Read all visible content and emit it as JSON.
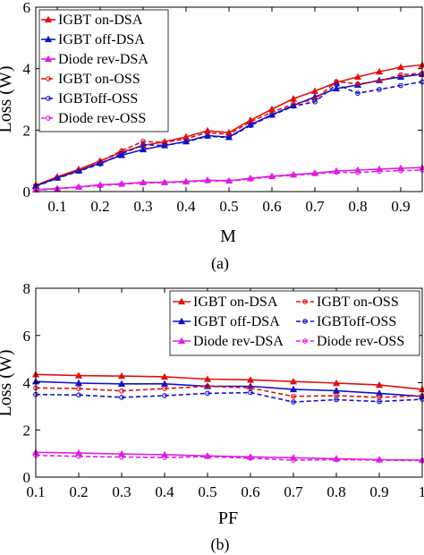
{
  "colors": {
    "IGBT on-DSA": "#e01010",
    "IGBT off-DSA": "#1212c8",
    "Diode rev-DSA": "#e01ee0",
    "IGBT on-OSS": "#e01010",
    "IGBToff-OSS": "#1212c8",
    "Diode rev-OSS": "#e01ee0"
  },
  "chart_data": [
    {
      "type": "line",
      "caption": "(a)",
      "xlabel": "M",
      "ylabel": "Loss (W)",
      "xlim": [
        0.05,
        0.95
      ],
      "ylim": [
        0,
        6
      ],
      "xticks": [
        "0.1",
        "0.2",
        "0.3",
        "0.4",
        "0.5",
        "0.6",
        "0.7",
        "0.8",
        "0.9"
      ],
      "yticks": [
        "0",
        "2",
        "4",
        "6"
      ],
      "grid": false,
      "legend_position": "top-left",
      "series": [
        {
          "name": "IGBT on-DSA",
          "style": "solid",
          "marker": "triangle",
          "x": [
            0.05,
            0.1,
            0.15,
            0.2,
            0.25,
            0.3,
            0.35,
            0.4,
            0.45,
            0.5,
            0.55,
            0.6,
            0.65,
            0.7,
            0.75,
            0.8,
            0.85,
            0.9,
            0.95
          ],
          "y": [
            0.2,
            0.48,
            0.72,
            1.0,
            1.28,
            1.5,
            1.62,
            1.78,
            1.98,
            1.92,
            2.32,
            2.68,
            3.02,
            3.27,
            3.55,
            3.73,
            3.9,
            4.05,
            4.12
          ]
        },
        {
          "name": "IGBT off-DSA",
          "style": "solid",
          "marker": "triangle",
          "x": [
            0.05,
            0.1,
            0.15,
            0.2,
            0.25,
            0.3,
            0.35,
            0.4,
            0.45,
            0.5,
            0.55,
            0.6,
            0.65,
            0.7,
            0.75,
            0.8,
            0.85,
            0.9,
            0.95
          ],
          "y": [
            0.18,
            0.45,
            0.68,
            0.93,
            1.18,
            1.37,
            1.5,
            1.63,
            1.82,
            1.77,
            2.18,
            2.5,
            2.8,
            3.08,
            3.35,
            3.47,
            3.62,
            3.73,
            3.82
          ]
        },
        {
          "name": "Diode rev-DSA",
          "style": "solid",
          "marker": "triangle",
          "x": [
            0.05,
            0.1,
            0.15,
            0.2,
            0.25,
            0.3,
            0.35,
            0.4,
            0.45,
            0.5,
            0.55,
            0.6,
            0.65,
            0.7,
            0.75,
            0.8,
            0.85,
            0.9,
            0.95
          ],
          "y": [
            0.06,
            0.1,
            0.15,
            0.22,
            0.25,
            0.3,
            0.3,
            0.33,
            0.37,
            0.35,
            0.43,
            0.5,
            0.55,
            0.6,
            0.67,
            0.7,
            0.73,
            0.76,
            0.78
          ]
        },
        {
          "name": "IGBT on-OSS",
          "style": "dashed",
          "marker": "circle",
          "x": [
            0.05,
            0.1,
            0.15,
            0.2,
            0.25,
            0.3,
            0.35,
            0.4,
            0.45,
            0.5,
            0.55,
            0.6,
            0.65,
            0.7,
            0.75,
            0.8,
            0.85,
            0.9,
            0.95
          ],
          "y": [
            0.2,
            0.46,
            0.7,
            0.98,
            1.33,
            1.63,
            1.6,
            1.72,
            1.92,
            1.86,
            2.27,
            2.58,
            2.85,
            3.0,
            3.58,
            3.5,
            3.6,
            3.8,
            3.85
          ]
        },
        {
          "name": "IGBToff-OSS",
          "style": "dashed",
          "marker": "circle",
          "x": [
            0.05,
            0.1,
            0.15,
            0.2,
            0.25,
            0.3,
            0.35,
            0.4,
            0.45,
            0.5,
            0.55,
            0.6,
            0.65,
            0.7,
            0.75,
            0.8,
            0.85,
            0.9,
            0.95
          ],
          "y": [
            0.17,
            0.43,
            0.66,
            0.9,
            1.23,
            1.52,
            1.5,
            1.62,
            1.8,
            1.76,
            2.15,
            2.48,
            2.78,
            2.92,
            3.48,
            3.2,
            3.32,
            3.45,
            3.57
          ]
        },
        {
          "name": "Diode rev-OSS",
          "style": "dashed",
          "marker": "circle",
          "x": [
            0.05,
            0.1,
            0.15,
            0.2,
            0.25,
            0.3,
            0.35,
            0.4,
            0.45,
            0.5,
            0.55,
            0.6,
            0.65,
            0.7,
            0.75,
            0.8,
            0.85,
            0.9,
            0.95
          ],
          "y": [
            0.05,
            0.09,
            0.14,
            0.2,
            0.24,
            0.28,
            0.29,
            0.31,
            0.35,
            0.34,
            0.41,
            0.48,
            0.53,
            0.58,
            0.63,
            0.62,
            0.66,
            0.68,
            0.7
          ]
        }
      ]
    },
    {
      "type": "line",
      "caption": "(b)",
      "xlabel": "PF",
      "ylabel": "Loss (W)",
      "xlim": [
        0.1,
        1.0
      ],
      "ylim": [
        0,
        8
      ],
      "xticks": [
        "0.1",
        "0.2",
        "0.3",
        "0.4",
        "0.5",
        "0.6",
        "0.7",
        "0.8",
        "0.9",
        "1"
      ],
      "yticks": [
        "0",
        "2",
        "4",
        "6",
        "8"
      ],
      "grid": false,
      "legend_position": "top-right",
      "series": [
        {
          "name": "IGBT on-DSA",
          "style": "solid",
          "marker": "triangle",
          "x": [
            0.1,
            0.2,
            0.3,
            0.4,
            0.5,
            0.6,
            0.7,
            0.8,
            0.9,
            1.0
          ],
          "y": [
            4.35,
            4.3,
            4.28,
            4.25,
            4.15,
            4.12,
            4.05,
            3.98,
            3.9,
            3.72
          ]
        },
        {
          "name": "IGBT off-DSA",
          "style": "solid",
          "marker": "triangle",
          "x": [
            0.1,
            0.2,
            0.3,
            0.4,
            0.5,
            0.6,
            0.7,
            0.8,
            0.9,
            1.0
          ],
          "y": [
            4.05,
            3.98,
            3.95,
            3.95,
            3.85,
            3.85,
            3.72,
            3.66,
            3.55,
            3.42
          ]
        },
        {
          "name": "Diode rev-DSA",
          "style": "solid",
          "marker": "triangle",
          "x": [
            0.1,
            0.2,
            0.3,
            0.4,
            0.5,
            0.6,
            0.7,
            0.8,
            0.9,
            1.0
          ],
          "y": [
            1.05,
            1.02,
            0.98,
            0.95,
            0.9,
            0.86,
            0.82,
            0.78,
            0.74,
            0.72
          ]
        },
        {
          "name": "IGBT on-OSS",
          "style": "dashed",
          "marker": "circle",
          "x": [
            0.1,
            0.2,
            0.3,
            0.4,
            0.5,
            0.6,
            0.7,
            0.8,
            0.9,
            1.0
          ],
          "y": [
            3.78,
            3.75,
            3.65,
            3.75,
            3.85,
            3.78,
            3.42,
            3.45,
            3.38,
            3.45
          ]
        },
        {
          "name": "IGBToff-OSS",
          "style": "dashed",
          "marker": "circle",
          "x": [
            0.1,
            0.2,
            0.3,
            0.4,
            0.5,
            0.6,
            0.7,
            0.8,
            0.9,
            1.0
          ],
          "y": [
            3.5,
            3.48,
            3.38,
            3.45,
            3.55,
            3.58,
            3.18,
            3.28,
            3.2,
            3.3
          ]
        },
        {
          "name": "Diode rev-OSS",
          "style": "dashed",
          "marker": "circle",
          "x": [
            0.1,
            0.2,
            0.3,
            0.4,
            0.5,
            0.6,
            0.7,
            0.8,
            0.9,
            1.0
          ],
          "y": [
            0.92,
            0.88,
            0.85,
            0.83,
            0.87,
            0.8,
            0.72,
            0.74,
            0.72,
            0.7
          ]
        }
      ]
    }
  ]
}
